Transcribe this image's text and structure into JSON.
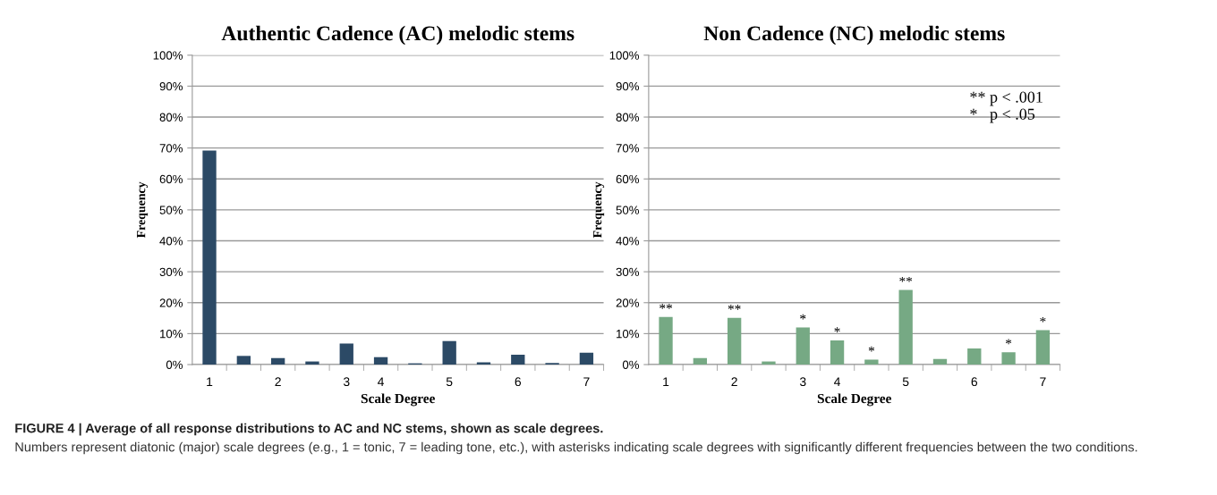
{
  "chart_data": [
    {
      "type": "bar",
      "title": "Authentic Cadence (AC) melodic stems",
      "xlabel": "Scale Degree",
      "ylabel": "Frequency",
      "categories": [
        "1",
        null,
        "2",
        null,
        "3",
        "4",
        null,
        "5",
        null,
        "6",
        null,
        "7"
      ],
      "values": [
        69.2,
        2.8,
        2.1,
        1.0,
        6.8,
        2.4,
        0.4,
        7.6,
        0.7,
        3.2,
        0.5,
        3.8
      ],
      "color": "#2c4a66",
      "ylim": [
        0,
        100
      ],
      "yticks": [
        {
          "value": 0,
          "label": "0%"
        },
        {
          "value": 10,
          "label": "10%"
        },
        {
          "value": 20,
          "label": "20%"
        },
        {
          "value": 30,
          "label": "30%"
        },
        {
          "value": 40,
          "label": "40%"
        },
        {
          "value": 50,
          "label": "50%"
        },
        {
          "value": 60,
          "label": "60%"
        },
        {
          "value": 70,
          "label": "70%"
        },
        {
          "value": 80,
          "label": "80%"
        },
        {
          "value": 90,
          "label": "90%"
        },
        {
          "value": 100,
          "label": "100%"
        }
      ],
      "grid": "y",
      "annotations": [
        "FIGURE 4 | Average of all response distributions to AC and NC stems, shown as scale degrees.",
        "Numbers represent diatonic (major) scale degrees (e.g., 1 = tonic, 7 = leading tone, etc.), with asterisks indicating scale degrees with significantly different frequencies between the two conditions."
      ]
    },
    {
      "type": "bar",
      "title": "Non Cadence (NC) melodic stems",
      "xlabel": "Scale Degree",
      "ylabel": "Frequency",
      "categories": [
        "1",
        null,
        "2",
        null,
        "3",
        "4",
        null,
        "5",
        null,
        "6",
        null,
        "7"
      ],
      "values": [
        15.4,
        2.1,
        15.1,
        1.0,
        12.0,
        7.8,
        1.6,
        24.1,
        1.8,
        5.2,
        4.0,
        11.1
      ],
      "value_labels": [
        "**",
        null,
        "**",
        null,
        "*",
        "*",
        "*",
        "**",
        null,
        null,
        "*",
        "*"
      ],
      "color": "#76a984",
      "ylim": [
        0,
        100
      ],
      "yticks": [
        {
          "value": 0,
          "label": "0%"
        },
        {
          "value": 10,
          "label": "10%"
        },
        {
          "value": 20,
          "label": "20%"
        },
        {
          "value": 30,
          "label": "30%"
        },
        {
          "value": 40,
          "label": "40%"
        },
        {
          "value": 50,
          "label": "50%"
        },
        {
          "value": 60,
          "label": "60%"
        },
        {
          "value": 70,
          "label": "70%"
        },
        {
          "value": 80,
          "label": "80%"
        },
        {
          "value": 90,
          "label": "90%"
        },
        {
          "value": 100,
          "label": "100%"
        }
      ],
      "grid": "y",
      "annotations": [
        "** p < .001",
        "*   p < .05"
      ]
    }
  ]
}
